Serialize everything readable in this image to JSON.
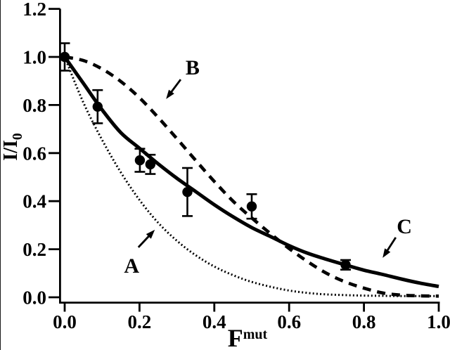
{
  "figure": {
    "background_color": "#ffffff",
    "ink_color": "#000000"
  },
  "chart_data": {
    "type": "line",
    "title": "",
    "xlabel": {
      "main": "F",
      "sup": "mut"
    },
    "ylabel": {
      "main": "I/I",
      "sub": "0"
    },
    "xlim": [
      0.0,
      1.0
    ],
    "ylim": [
      0.0,
      1.2
    ],
    "grid": false,
    "legend": "none - curves identified by arrowed letters A, B, C",
    "x_tick_values": [
      0.0,
      0.2,
      0.4,
      0.6,
      0.8,
      1.0
    ],
    "x_tick_labels": [
      "0.0",
      "0.2",
      "0.4",
      "0.6",
      "0.8",
      "1.0"
    ],
    "y_tick_values": [
      0.0,
      0.2,
      0.4,
      0.6,
      0.8,
      1.0,
      1.2
    ],
    "y_tick_labels": [
      "0.0",
      "0.2",
      "0.4",
      "0.6",
      "0.8",
      "1.0",
      "1.2"
    ],
    "x_samples": [
      0,
      0.05,
      0.1,
      0.15,
      0.2,
      0.25,
      0.3,
      0.35,
      0.4,
      0.45,
      0.5,
      0.55,
      0.6,
      0.65,
      0.7,
      0.75,
      0.8,
      0.85,
      0.9,
      0.95,
      1
    ],
    "series": [
      {
        "name": "A",
        "style": "dotted",
        "y": [
          1.0,
          0.81,
          0.655,
          0.52,
          0.405,
          0.31,
          0.235,
          0.175,
          0.128,
          0.092,
          0.064,
          0.044,
          0.028,
          0.018,
          0.012,
          0.009,
          0.007,
          0.006,
          0.005,
          0.005,
          0.005
        ]
      },
      {
        "name": "B",
        "style": "dashed",
        "y": [
          1.0,
          0.985,
          0.95,
          0.898,
          0.83,
          0.748,
          0.66,
          0.57,
          0.482,
          0.4,
          0.33,
          0.265,
          0.203,
          0.148,
          0.1,
          0.064,
          0.038,
          0.018,
          0.009,
          0.006,
          0.005
        ]
      },
      {
        "name": "C",
        "style": "solid",
        "y": [
          1.0,
          0.89,
          0.78,
          0.685,
          0.62,
          0.555,
          0.495,
          0.44,
          0.385,
          0.335,
          0.29,
          0.253,
          0.215,
          0.183,
          0.158,
          0.135,
          0.113,
          0.095,
          0.076,
          0.059,
          0.045
        ]
      }
    ],
    "scatter": {
      "name": "experimental data",
      "marker": "filled-circle",
      "error_bars": true,
      "points": [
        {
          "x": 0.0,
          "y": 1.0,
          "err": 0.057
        },
        {
          "x": 0.088,
          "y": 0.793,
          "err": 0.069
        },
        {
          "x": 0.201,
          "y": 0.57,
          "err": 0.048
        },
        {
          "x": 0.229,
          "y": 0.553,
          "err": 0.04
        },
        {
          "x": 0.328,
          "y": 0.438,
          "err": 0.1
        },
        {
          "x": 0.5,
          "y": 0.378,
          "err": 0.051
        },
        {
          "x": 0.751,
          "y": 0.135,
          "err": 0.02
        }
      ]
    },
    "annotations": [
      {
        "label": "A",
        "label_pos": {
          "x": 0.179,
          "y": 0.132
        },
        "arrow": {
          "from": {
            "x": 0.197,
            "y": 0.208
          },
          "to": {
            "x": 0.241,
            "y": 0.281
          }
        }
      },
      {
        "label": "B",
        "label_pos": {
          "x": 0.342,
          "y": 0.956
        },
        "arrow": {
          "from": {
            "x": 0.31,
            "y": 0.906
          },
          "to": {
            "x": 0.271,
            "y": 0.825
          }
        }
      },
      {
        "label": "C",
        "label_pos": {
          "x": 0.908,
          "y": 0.295
        },
        "arrow": {
          "from": {
            "x": 0.885,
            "y": 0.249
          },
          "to": {
            "x": 0.85,
            "y": 0.164
          }
        }
      }
    ]
  }
}
